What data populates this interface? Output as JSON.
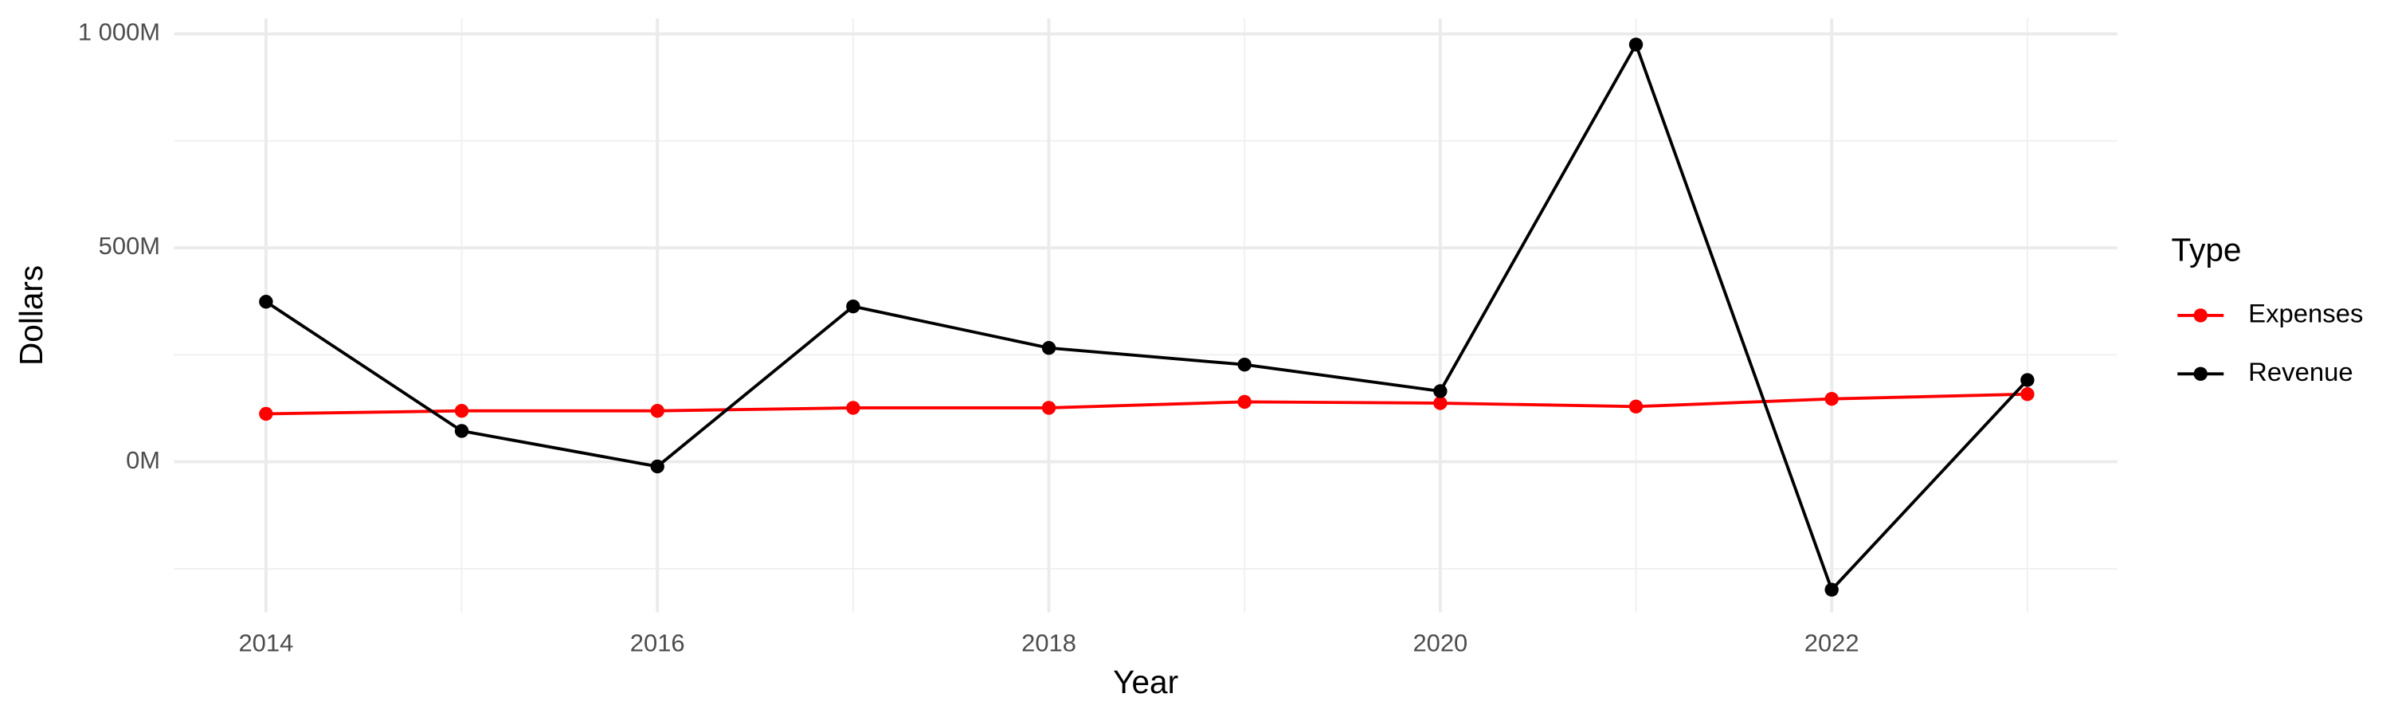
{
  "chart_data": {
    "type": "line",
    "x_label": "Year",
    "y_label": "Dollars",
    "legend_title": "Type",
    "x": [
      2014,
      2015,
      2016,
      2017,
      2018,
      2019,
      2020,
      2021,
      2022,
      2023
    ],
    "series": [
      {
        "name": "Expenses",
        "color": "#ff0000",
        "values": [
          112,
          119,
          119,
          126,
          126,
          140,
          137,
          129,
          147,
          158
        ]
      },
      {
        "name": "Revenue",
        "color": "#000000",
        "values": [
          374,
          72,
          -11,
          363,
          266,
          227,
          165,
          975,
          -299,
          191
        ]
      }
    ],
    "xlim": [
      2013.53,
      2023.46
    ],
    "xticks": [
      2014,
      2016,
      2018,
      2020,
      2022
    ],
    "ylim": [
      -352,
      1036
    ],
    "yticks": [
      {
        "value": 0,
        "label": "0M"
      },
      {
        "value": 500,
        "label": "500M"
      },
      {
        "value": 1000,
        "label": "1 000M"
      }
    ],
    "grid": true,
    "minor_grid": true,
    "legend_position": "right"
  }
}
